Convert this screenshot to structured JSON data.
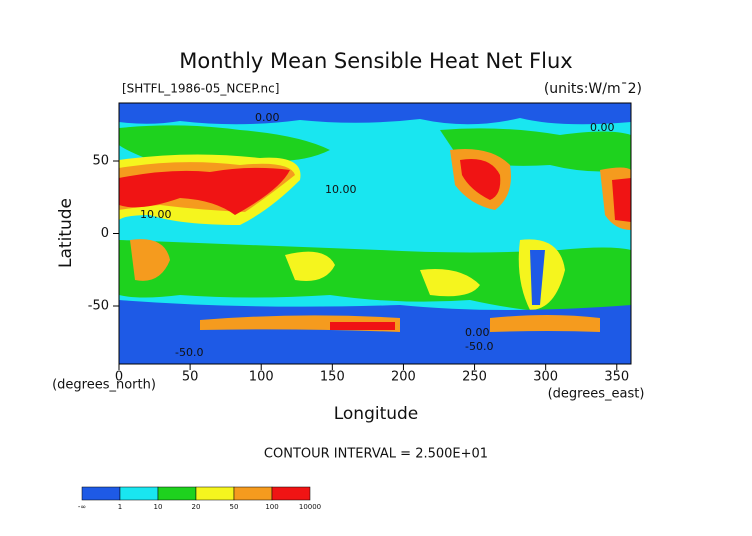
{
  "chart_data": {
    "type": "contour-map",
    "title": "Monthly Mean Sensible Heat Net Flux",
    "file_label": "[SHTFL_1986-05_NCEP.nc]",
    "units_label": "(units:W/m¯2)",
    "y_label": "Latitude",
    "y_units": "(degrees_north)",
    "x_label": "Longitude",
    "x_units": "(degrees_east)",
    "contour_interval": "CONTOUR INTERVAL = 2.500E+01",
    "contour_labels": [
      "0.00",
      "10.00",
      "0.00",
      "10.00",
      "-50.0",
      "-50.0",
      "0.00"
    ],
    "xlim": [
      0,
      360
    ],
    "xticks": [
      0,
      50,
      100,
      150,
      200,
      250,
      300,
      350
    ],
    "ylim": [
      -90,
      90
    ],
    "yticks": [
      -50,
      0,
      50
    ],
    "colorbar": {
      "labels": [
        "-∞",
        "1",
        "10",
        "20",
        "50",
        "100",
        "10000"
      ],
      "colors": [
        "#1e5ae6",
        "#19e6f0",
        "#1ed21e",
        "#f5f51e",
        "#f59b1e",
        "#f01414"
      ]
    }
  }
}
